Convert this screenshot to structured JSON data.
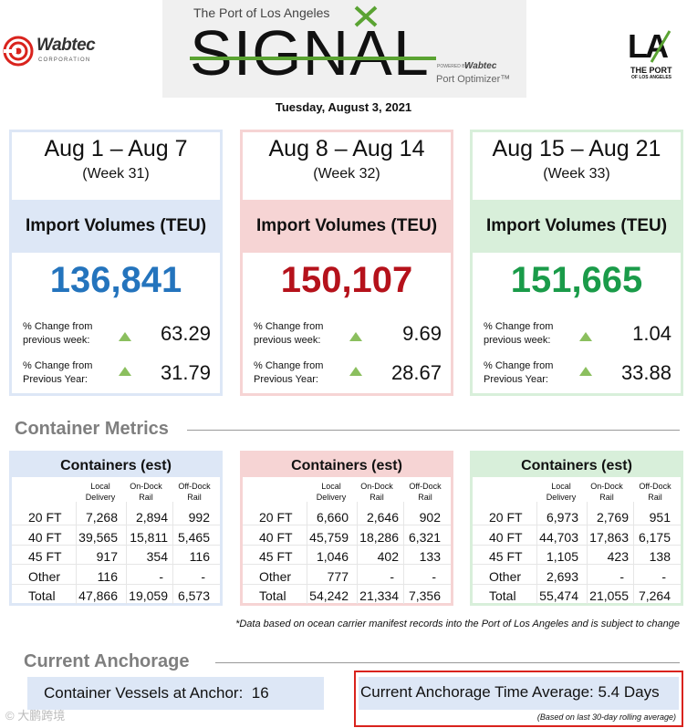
{
  "header": {
    "left_logo": {
      "name": "Wabtec",
      "subtext": "CORPORATION"
    },
    "banner": {
      "kicker": "The Port of Los Angeles",
      "title": "SIGNAL",
      "powered_by": "POWERED BY",
      "powered_brand": "Wabtec",
      "product": "Port Optimizer™"
    },
    "right_logo": {
      "letters": "LA",
      "line1": "THE PORT",
      "line2": "OF LOS ANGELES"
    },
    "date": "Tuesday, August 3, 2021"
  },
  "weeks": [
    {
      "range": "Aug 1 – Aug 7",
      "week": "(Week 31)",
      "band": "Import Volumes (TEU)",
      "total": "136,841",
      "changes": [
        {
          "label1": "% Change from",
          "label2": "previous week:",
          "value": "63.29"
        },
        {
          "label1": "% Change from",
          "label2": "Previous Year:",
          "value": "31.79"
        }
      ]
    },
    {
      "range": "Aug 8 – Aug 14",
      "week": "(Week 32)",
      "band": "Import Volumes (TEU)",
      "total": "150,107",
      "changes": [
        {
          "label1": "% Change from",
          "label2": "previous week:",
          "value": "9.69"
        },
        {
          "label1": "% Change from",
          "label2": "Previous Year:",
          "value": "28.67"
        }
      ]
    },
    {
      "range": "Aug 15 – Aug 21",
      "week": "(Week 33)",
      "band": "Import Volumes (TEU)",
      "total": "151,665",
      "changes": [
        {
          "label1": "% Change from",
          "label2": "previous week:",
          "value": "1.04"
        },
        {
          "label1": "% Change from",
          "label2": "Previous Year:",
          "value": "33.88"
        }
      ]
    }
  ],
  "container_metrics": {
    "title": "Container Metrics",
    "column_headers": [
      {
        "line1": "Local",
        "line2": "Delivery"
      },
      {
        "line1": "On-Dock",
        "line2": "Rail"
      },
      {
        "line1": "Off-Dock",
        "line2": "Rail"
      }
    ],
    "row_labels": [
      "20 FT",
      "40 FT",
      "45 FT",
      "Other",
      "Total"
    ],
    "tables": [
      {
        "band": "Containers (est)",
        "rows": [
          [
            "7,268",
            "2,894",
            "992"
          ],
          [
            "39,565",
            "15,811",
            "5,465"
          ],
          [
            "917",
            "354",
            "116"
          ],
          [
            "116",
            "-",
            "-"
          ],
          [
            "47,866",
            "19,059",
            "6,573"
          ]
        ]
      },
      {
        "band": "Containers (est)",
        "rows": [
          [
            "6,660",
            "2,646",
            "902"
          ],
          [
            "45,759",
            "18,286",
            "6,321"
          ],
          [
            "1,046",
            "402",
            "133"
          ],
          [
            "777",
            "-",
            "-"
          ],
          [
            "54,242",
            "21,334",
            "7,356"
          ]
        ]
      },
      {
        "band": "Containers (est)",
        "rows": [
          [
            "6,973",
            "2,769",
            "951"
          ],
          [
            "44,703",
            "17,863",
            "6,175"
          ],
          [
            "1,105",
            "423",
            "138"
          ],
          [
            "2,693",
            "-",
            "-"
          ],
          [
            "55,474",
            "21,055",
            "7,264"
          ]
        ]
      }
    ],
    "footnote": "*Data based on ocean carrier manifest records into the Port of Los Angeles and is subject to change"
  },
  "anchorage": {
    "title": "Current Anchorage",
    "vessels_text": "Container Vessels at Anchor:  16",
    "time_text": "Current Anchorage Time Average: 5.4 Days",
    "time_note": "(Based on last 30-day rolling average)"
  },
  "colors": {
    "week1_accent": "#2474bd",
    "week2_accent": "#b5121b",
    "week3_accent": "#1a9b49",
    "arrow_up": "#8bbf5e",
    "highlight_border": "#d9231d"
  },
  "icons": {
    "change_indicator": "triangle-up-icon"
  },
  "watermark": "© 大鹏跨境"
}
